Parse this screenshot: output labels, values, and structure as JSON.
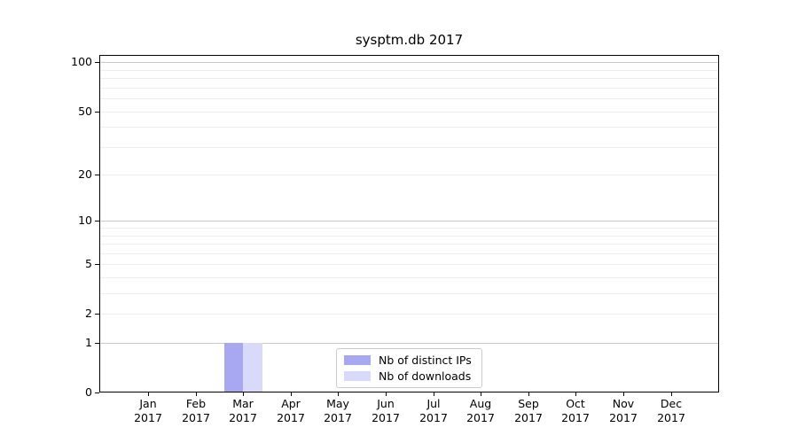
{
  "chart_data": {
    "type": "bar",
    "title": "sysptm.db 2017",
    "categories": [
      "Jan 2017",
      "Feb 2017",
      "Mar 2017",
      "Apr 2017",
      "May 2017",
      "Jun 2017",
      "Jul 2017",
      "Aug 2017",
      "Sep 2017",
      "Oct 2017",
      "Nov 2017",
      "Dec 2017"
    ],
    "series": [
      {
        "name": "Nb of distinct IPs",
        "color": "#a7a7f2",
        "values": [
          0,
          0,
          1,
          0,
          0,
          0,
          0,
          0,
          0,
          0,
          0,
          0
        ]
      },
      {
        "name": "Nb of downloads",
        "color": "#d9d9fa",
        "values": [
          0,
          0,
          1,
          0,
          0,
          0,
          0,
          0,
          0,
          0,
          0,
          0
        ]
      }
    ],
    "xlabel": "",
    "ylabel": "",
    "yscale": "log10(1+y)",
    "ylim": [
      0,
      111
    ],
    "yticks": [
      0,
      1,
      2,
      5,
      10,
      20,
      50,
      100
    ],
    "minor_yticks": [
      3,
      4,
      6,
      7,
      8,
      9,
      30,
      40,
      60,
      70,
      80,
      90
    ],
    "major_gridline_values": [
      1,
      10,
      100
    ],
    "grid": "horizontal",
    "legend_position": "lower center",
    "colors": {
      "spine": "#000000",
      "major_gridline": "#c9c9c9",
      "minor_gridline": "#ededed"
    }
  }
}
